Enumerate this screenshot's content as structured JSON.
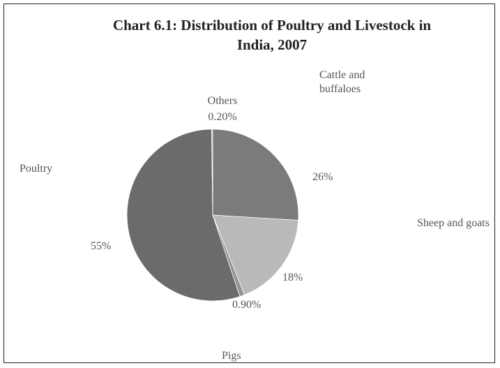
{
  "chart_data": {
    "type": "pie",
    "title": "Chart 6.1: Distribution of Poultry and Livestock in India, 2007",
    "categories": [
      "Cattle and buffaloes",
      "Sheep and goats",
      "Pigs",
      "Poultry",
      "Others"
    ],
    "values": [
      26,
      18,
      0.9,
      55,
      0.2
    ],
    "value_labels": [
      "26%",
      "18%",
      "0.90%",
      "55%",
      "0.20%"
    ],
    "colors": [
      "#7b7b7b",
      "#b9b9b9",
      "#949494",
      "#6b6b6b",
      "#a8a8a8"
    ]
  }
}
